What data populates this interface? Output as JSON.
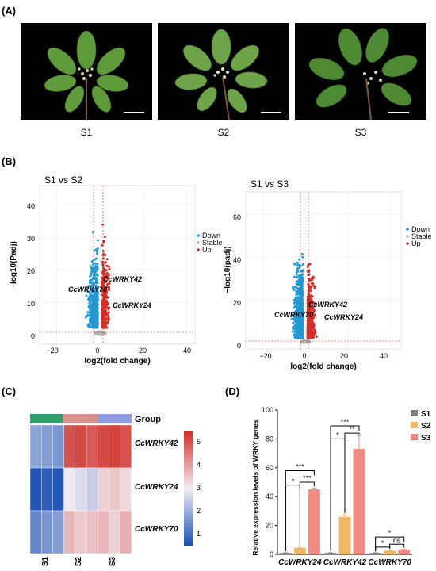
{
  "panels": {
    "a": "(A)",
    "b": "(B)",
    "c": "(C)",
    "d": "(D)"
  },
  "photos": [
    {
      "label": "S1"
    },
    {
      "label": "S2"
    },
    {
      "label": "S3"
    }
  ],
  "volcano": {
    "legend": [
      "Down",
      "Stable",
      "Up"
    ],
    "colors": {
      "down": "#1f9ad6",
      "stable": "#b0b0b0",
      "up": "#d0302a"
    },
    "left": {
      "title": "S1 vs S2",
      "xlabel": "log2(fold change)",
      "ylabel": "−log10(Padj)",
      "xticks": [
        "−20",
        "0",
        "20",
        "40"
      ],
      "yticks": [
        "0",
        "10",
        "20",
        "30",
        "40"
      ],
      "labels": [
        "CcWRKY42",
        "CcWRKY70",
        "CcWRKY24"
      ]
    },
    "right": {
      "title": "S1 vs S3",
      "xlabel": "log2(fold change)",
      "ylabel": "−log10(padj)",
      "xticks": [
        "−20",
        "0",
        "20",
        "40"
      ],
      "yticks": [
        "0",
        "20",
        "40",
        "60"
      ],
      "labels": [
        "CcWRKY42",
        "CcWRKY70",
        "CcWRKY24"
      ]
    }
  },
  "heatmap": {
    "group_label": "Group",
    "rows": [
      "CcWRKY42",
      "CcWRKY24",
      "CcWRKY70"
    ],
    "cols": [
      "S1",
      "S2",
      "S3"
    ],
    "legend_ticks": [
      "5",
      "4",
      "3",
      "2",
      "1"
    ]
  },
  "chart_data": {
    "type": "bar",
    "categories": [
      "CcWRKY24",
      "CcWRKY42",
      "CcWRKY70"
    ],
    "series": [
      {
        "name": "S1",
        "values": [
          1,
          1,
          1
        ],
        "errors": [
          0.1,
          0.1,
          0.1
        ],
        "color": "#7f7f7f"
      },
      {
        "name": "S2",
        "values": [
          4.5,
          26,
          2.5
        ],
        "errors": [
          0.5,
          1.5,
          0.3
        ],
        "color": "#f2b766"
      },
      {
        "name": "S3",
        "values": [
          45,
          73,
          3
        ],
        "errors": [
          1,
          9,
          0.5
        ],
        "color": "#f28b84"
      }
    ],
    "ylabel": "Relative expression levels of WRKY genes",
    "ylim": [
      0,
      100
    ],
    "yticks": [
      "0",
      "20",
      "40",
      "60",
      "80",
      "100"
    ],
    "legend_position": "top-right",
    "significance": [
      "*",
      "***",
      "***",
      "*",
      "**",
      "***",
      "*",
      "ns",
      "*"
    ]
  }
}
